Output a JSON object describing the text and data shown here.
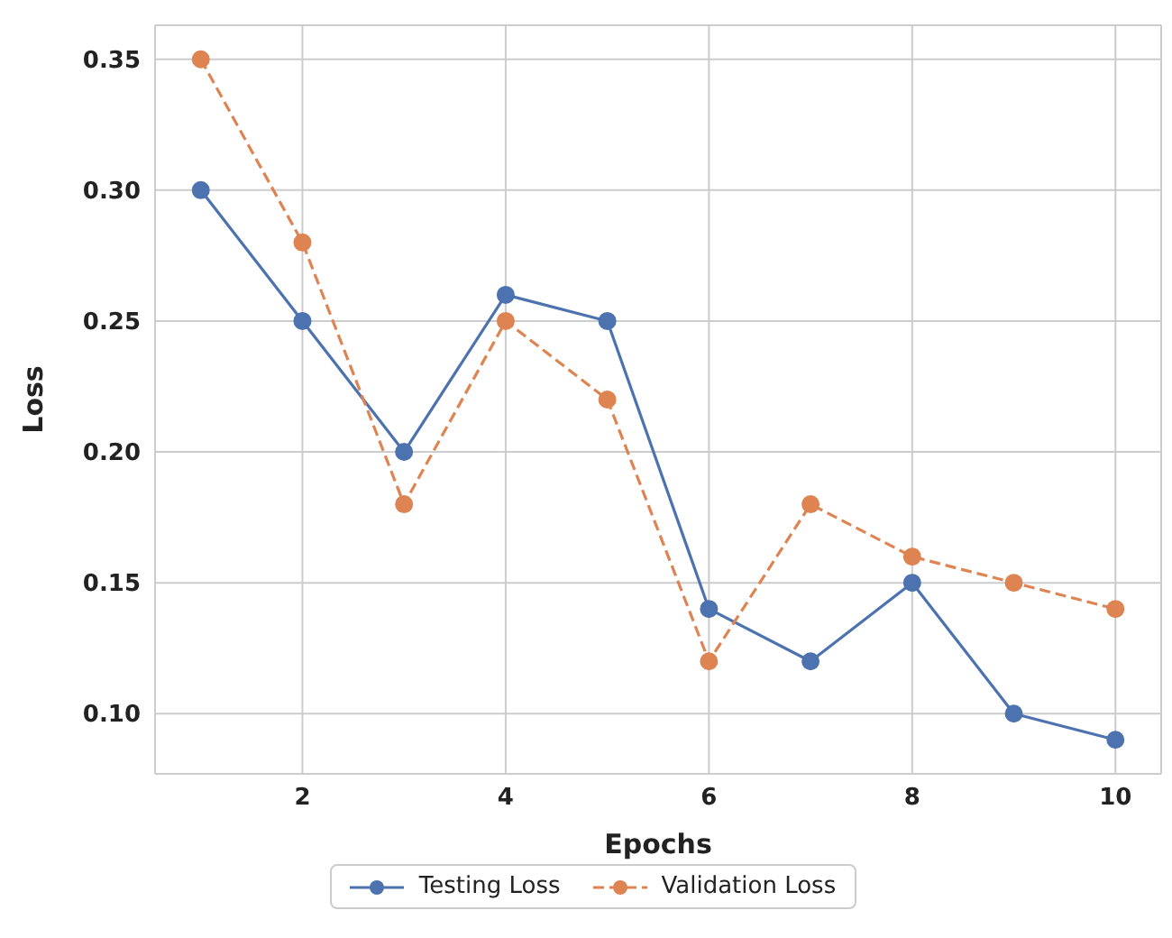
{
  "chart_data": {
    "type": "line",
    "xlabel": "Epochs",
    "ylabel": "Loss",
    "x": [
      1,
      2,
      3,
      4,
      5,
      6,
      7,
      8,
      9,
      10
    ],
    "series": [
      {
        "name": "Testing Loss",
        "color": "#4c72b0",
        "line_style": "solid",
        "values": [
          0.3,
          0.25,
          0.2,
          0.26,
          0.25,
          0.14,
          0.12,
          0.15,
          0.1,
          0.09
        ]
      },
      {
        "name": "Validation Loss",
        "color": "#dd8452",
        "line_style": "dashed",
        "values": [
          0.35,
          0.28,
          0.18,
          0.25,
          0.22,
          0.12,
          0.18,
          0.16,
          0.15,
          0.14
        ]
      }
    ],
    "xlim": [
      0.55,
      10.45
    ],
    "xticks": [
      2,
      4,
      6,
      8,
      10
    ],
    "ylim": [
      0.077,
      0.363
    ],
    "yticks": [
      {
        "value": 0.1,
        "label": "0.10"
      },
      0.15,
      {
        "value": 0.2,
        "label": "0.20"
      },
      0.25,
      {
        "value": 0.3,
        "label": "0.30"
      },
      0.35
    ],
    "grid": true,
    "legend": "bottom",
    "marker": "circle"
  }
}
